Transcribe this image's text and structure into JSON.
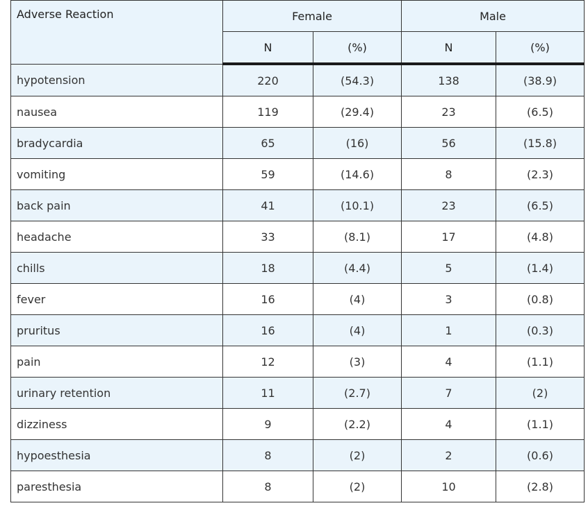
{
  "header": {
    "label": "Adverse Reaction",
    "groups": [
      "Female",
      "Male"
    ],
    "sub": [
      "N",
      "(%)",
      "N",
      "(%)"
    ]
  },
  "rows": [
    {
      "name": "hypotension",
      "f_n": "220",
      "f_pct": "(54.3)",
      "m_n": "138",
      "m_pct": "(38.9)"
    },
    {
      "name": "nausea",
      "f_n": "119",
      "f_pct": "(29.4)",
      "m_n": "23",
      "m_pct": "(6.5)"
    },
    {
      "name": "bradycardia",
      "f_n": "65",
      "f_pct": "(16)",
      "m_n": "56",
      "m_pct": "(15.8)"
    },
    {
      "name": "vomiting",
      "f_n": "59",
      "f_pct": "(14.6)",
      "m_n": "8",
      "m_pct": "(2.3)"
    },
    {
      "name": "back pain",
      "f_n": "41",
      "f_pct": "(10.1)",
      "m_n": "23",
      "m_pct": "(6.5)"
    },
    {
      "name": "headache",
      "f_n": "33",
      "f_pct": "(8.1)",
      "m_n": "17",
      "m_pct": "(4.8)"
    },
    {
      "name": "chills",
      "f_n": "18",
      "f_pct": "(4.4)",
      "m_n": "5",
      "m_pct": "(1.4)"
    },
    {
      "name": "fever",
      "f_n": "16",
      "f_pct": "(4)",
      "m_n": "3",
      "m_pct": "(0.8)"
    },
    {
      "name": "pruritus",
      "f_n": "16",
      "f_pct": "(4)",
      "m_n": "1",
      "m_pct": "(0.3)"
    },
    {
      "name": "pain",
      "f_n": "12",
      "f_pct": "(3)",
      "m_n": "4",
      "m_pct": "(1.1)"
    },
    {
      "name": "urinary retention",
      "f_n": "11",
      "f_pct": "(2.7)",
      "m_n": "7",
      "m_pct": "(2)"
    },
    {
      "name": "dizziness",
      "f_n": "9",
      "f_pct": "(2.2)",
      "m_n": "4",
      "m_pct": "(1.1)"
    },
    {
      "name": "hypoesthesia",
      "f_n": "8",
      "f_pct": "(2)",
      "m_n": "2",
      "m_pct": "(0.6)"
    },
    {
      "name": "paresthesia",
      "f_n": "8",
      "f_pct": "(2)",
      "m_n": "10",
      "m_pct": "(2.8)"
    }
  ]
}
